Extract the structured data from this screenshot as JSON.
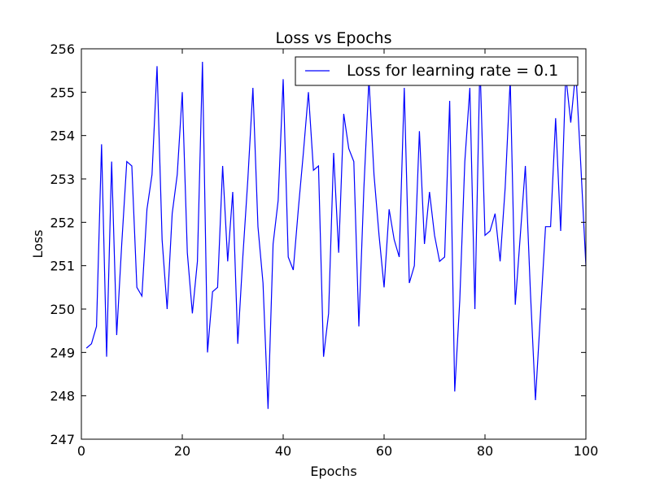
{
  "chart_data": {
    "type": "line",
    "title": "Loss vs Epochs",
    "xlabel": "Epochs",
    "ylabel": "Loss",
    "xlim": [
      0,
      100
    ],
    "ylim": [
      247,
      256
    ],
    "xticks": [
      0,
      20,
      40,
      60,
      80,
      100
    ],
    "yticks": [
      247,
      248,
      249,
      250,
      251,
      252,
      253,
      254,
      255,
      256
    ],
    "grid": false,
    "legend_position": "top-right",
    "series": [
      {
        "name": "Loss for learning rate = 0.1",
        "color": "#0000ff",
        "x": [
          1,
          2,
          3,
          4,
          5,
          6,
          7,
          8,
          9,
          10,
          11,
          12,
          13,
          14,
          15,
          16,
          17,
          18,
          19,
          20,
          21,
          22,
          23,
          24,
          25,
          26,
          27,
          28,
          29,
          30,
          31,
          32,
          33,
          34,
          35,
          36,
          37,
          38,
          39,
          40,
          41,
          42,
          43,
          44,
          45,
          46,
          47,
          48,
          49,
          50,
          51,
          52,
          53,
          54,
          55,
          56,
          57,
          58,
          59,
          60,
          61,
          62,
          63,
          64,
          65,
          66,
          67,
          68,
          69,
          70,
          71,
          72,
          73,
          74,
          75,
          76,
          77,
          78,
          79,
          80,
          81,
          82,
          83,
          84,
          85,
          86,
          87,
          88,
          89,
          90,
          91,
          92,
          93,
          94,
          95,
          96,
          97,
          98,
          99,
          100
        ],
        "y": [
          249.1,
          249.2,
          249.6,
          253.8,
          248.9,
          253.4,
          249.4,
          251.5,
          253.4,
          253.3,
          250.5,
          250.3,
          252.3,
          253.1,
          255.6,
          251.6,
          250.0,
          252.2,
          253.1,
          255.0,
          251.3,
          249.9,
          251.1,
          255.7,
          249.0,
          250.4,
          250.5,
          253.3,
          251.1,
          252.7,
          249.2,
          251.2,
          253.0,
          255.1,
          251.9,
          250.6,
          247.7,
          251.5,
          252.5,
          255.3,
          251.2,
          250.9,
          252.3,
          253.6,
          255.0,
          253.2,
          253.3,
          248.9,
          249.9,
          253.6,
          251.3,
          254.5,
          253.7,
          253.4,
          249.6,
          252.8,
          255.3,
          253.1,
          251.7,
          250.5,
          252.3,
          251.6,
          251.2,
          255.1,
          250.6,
          251.0,
          254.1,
          251.5,
          252.7,
          251.7,
          251.1,
          251.2,
          254.8,
          248.1,
          250.2,
          253.4,
          255.1,
          250.0,
          255.7,
          251.7,
          251.8,
          252.2,
          251.1,
          252.8,
          255.3,
          250.1,
          251.7,
          253.3,
          250.4,
          247.9,
          249.9,
          251.9,
          251.9,
          254.4,
          251.8,
          255.4,
          254.3,
          255.5,
          253.3,
          251.0
        ]
      }
    ]
  }
}
